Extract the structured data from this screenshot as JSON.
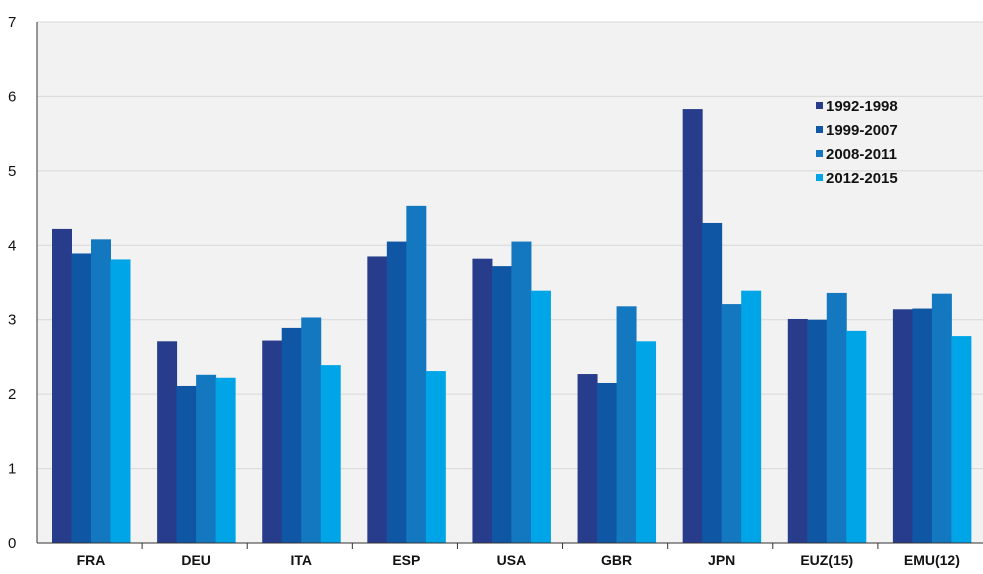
{
  "chart_data": {
    "type": "bar",
    "title": "",
    "xlabel": "",
    "ylabel": "",
    "ylim": [
      0,
      7
    ],
    "yticks": [
      "0",
      "1",
      "2",
      "3",
      "4",
      "5",
      "6",
      "7"
    ],
    "grid": true,
    "legend_position": "top-right",
    "categories": [
      "FRA",
      "DEU",
      "ITA",
      "ESP",
      "USA",
      "GBR",
      "JPN",
      "EUZ(15)",
      "EMU(12)"
    ],
    "series": [
      {
        "name": "1992-1998",
        "color": "#283c8c",
        "values": [
          4.22,
          2.71,
          2.72,
          3.85,
          3.82,
          2.27,
          5.83,
          3.01,
          3.14
        ]
      },
      {
        "name": "1999-2007",
        "color": "#0f57a5",
        "values": [
          3.89,
          2.11,
          2.89,
          4.05,
          3.72,
          2.15,
          4.3,
          3.0,
          3.15
        ]
      },
      {
        "name": "2008-2011",
        "color": "#1478c0",
        "values": [
          4.08,
          2.26,
          3.03,
          4.53,
          4.05,
          3.18,
          3.21,
          3.36,
          3.35
        ]
      },
      {
        "name": "2012-2015",
        "color": "#00a5e8",
        "values": [
          3.81,
          2.22,
          2.39,
          2.31,
          3.39,
          2.71,
          3.39,
          2.85,
          2.78
        ]
      }
    ]
  }
}
